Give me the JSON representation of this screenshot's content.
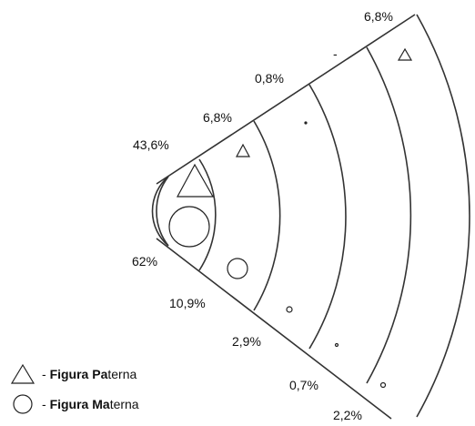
{
  "diagram": {
    "paternal_labels": [
      "43,6%",
      "6,8%",
      "0,8%",
      "-",
      "6,8%"
    ],
    "maternal_labels": [
      "62%",
      "10,9%",
      "2,9%",
      "0,7%",
      "2,2%"
    ]
  },
  "legend": {
    "paternal": {
      "bold1": "Figura Pa",
      "normal1": "terna",
      "prefix": "- "
    },
    "maternal": {
      "bold1": "Figura Ma",
      "normal1": "terna",
      "prefix": "- "
    }
  },
  "colors": {
    "line": "#333333",
    "text": "#111111"
  },
  "icons": {
    "paternal": "triangle-icon",
    "maternal": "circle-icon"
  }
}
